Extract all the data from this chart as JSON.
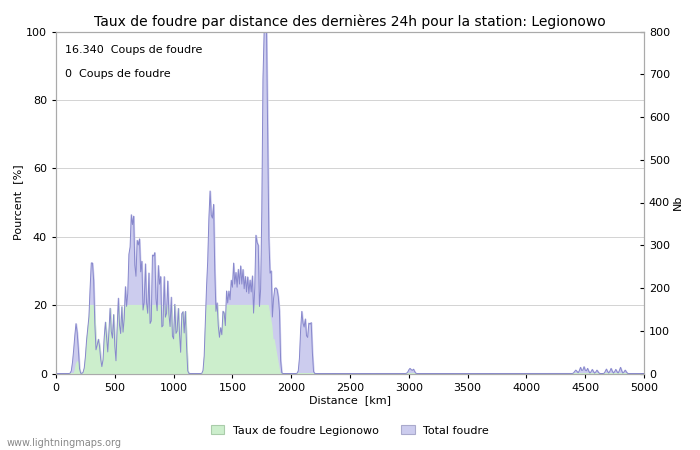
{
  "title": "Taux de foudre par distance des dernières 24h pour la station: Legionowo",
  "xlabel": "Distance  [km]",
  "ylabel_left": "Pourcent  [%]",
  "ylabel_right": "Nb",
  "annotation_line1": "16.340  Coups de foudre",
  "annotation_line2": "0  Coups de foudre",
  "xlim": [
    0,
    5000
  ],
  "ylim_left": [
    0,
    100
  ],
  "ylim_right": [
    0,
    800
  ],
  "xticks": [
    0,
    500,
    1000,
    1500,
    2000,
    2500,
    3000,
    3500,
    4000,
    4500,
    5000
  ],
  "yticks_left": [
    0,
    20,
    40,
    60,
    80,
    100
  ],
  "yticks_right": [
    0,
    100,
    200,
    300,
    400,
    500,
    600,
    700,
    800
  ],
  "legend_label_green": "Taux de foudre Legionowo",
  "legend_label_blue": "Total foudre",
  "watermark": "www.lightningmaps.org",
  "line_color": "#8888cc",
  "fill_color_blue": "#ccccee",
  "fill_color_green": "#cceecc",
  "background_color": "#ffffff",
  "grid_color": "#cccccc",
  "title_fontsize": 10,
  "axis_fontsize": 8,
  "tick_fontsize": 8,
  "annotation_fontsize": 8
}
